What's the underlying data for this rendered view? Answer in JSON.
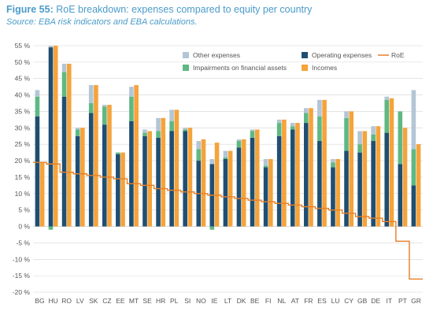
{
  "figure": {
    "number": "Figure 55:",
    "title": " RoE breakdown: expenses compared to equity per country",
    "source": "Source: EBA risk indicators and EBA calculations."
  },
  "colors": {
    "other": "#b3c6d6",
    "impairments": "#5fb883",
    "operating": "#1f4e71",
    "incomes": "#f5a33b",
    "roe": "#e57f2a",
    "grid": "#d4d4d4",
    "axis_text": "#555555"
  },
  "chart_data": {
    "type": "bar",
    "y_unit": "%",
    "ylim": [
      -20,
      55
    ],
    "yticks": [
      55,
      50,
      45,
      40,
      35,
      30,
      25,
      20,
      15,
      10,
      5,
      0,
      -5,
      -10,
      -15,
      -20
    ],
    "ytick_labels": [
      "55 %",
      "50 %",
      "45 %",
      "40 %",
      "35 %",
      "30 %",
      "25 %",
      "20 %",
      "15 %",
      "10 %",
      "5 %",
      "0 %",
      "-5 %",
      "-10 %",
      "-15 %",
      "-20 %"
    ],
    "categories": [
      "BG",
      "HU",
      "RO",
      "LV",
      "SK",
      "CZ",
      "EE",
      "MT",
      "SE",
      "HR",
      "PL",
      "SI",
      "NO",
      "IE",
      "LT",
      "DK",
      "BE",
      "FI",
      "NL",
      "AT",
      "FR",
      "ES",
      "LU",
      "CY",
      "GB",
      "DE",
      "IT",
      "PT",
      "GR"
    ],
    "legend": {
      "other": "Other expenses",
      "operating": "Operating expenses",
      "roe": "RoE",
      "impairments": "Impairments on financial assets",
      "incomes": "Incomes"
    },
    "stack_series": [
      {
        "key": "operating",
        "values": [
          33.5,
          54.5,
          39.5,
          27.5,
          34.5,
          31,
          22,
          32,
          27.5,
          27,
          29,
          29,
          20,
          19,
          20.5,
          24,
          27,
          18,
          27.5,
          29.5,
          31.5,
          26,
          18,
          23,
          22.5,
          26,
          28.5,
          19,
          12.5
        ]
      },
      {
        "key": "impairments",
        "values": [
          6,
          -1,
          7.5,
          2,
          3,
          5.5,
          0.5,
          7.5,
          1,
          2,
          3,
          0.5,
          3.5,
          -1,
          0.5,
          2,
          2,
          0.5,
          4,
          1,
          3,
          7.5,
          1.5,
          10,
          2.5,
          2,
          10,
          16,
          11
        ]
      },
      {
        "key": "other",
        "values": [
          2,
          0.5,
          2.5,
          0.5,
          5.5,
          0.5,
          0,
          3,
          1,
          4,
          3.5,
          0.5,
          2.5,
          1.5,
          2,
          0.5,
          0.5,
          2,
          1,
          1,
          1.5,
          5,
          1,
          2,
          4,
          2.5,
          1,
          0,
          18
        ]
      }
    ],
    "incomes": [
      19.5,
      55,
      49.5,
      30,
      43,
      37,
      22.5,
      43,
      29,
      33,
      35.5,
      30,
      26.5,
      25.5,
      23,
      26.5,
      29.5,
      20.5,
      32.5,
      31.5,
      36,
      38.5,
      20.5,
      35,
      29,
      30.5,
      39,
      30,
      25
    ],
    "roe": [
      19.5,
      19,
      16.5,
      16,
      15.5,
      15,
      14.5,
      13,
      12.5,
      11.5,
      11,
      10.5,
      10,
      9.5,
      9,
      8.5,
      8,
      7.5,
      7,
      6.5,
      6,
      5.5,
      5,
      4,
      3,
      2.5,
      1.5,
      -4.5,
      -16
    ]
  }
}
